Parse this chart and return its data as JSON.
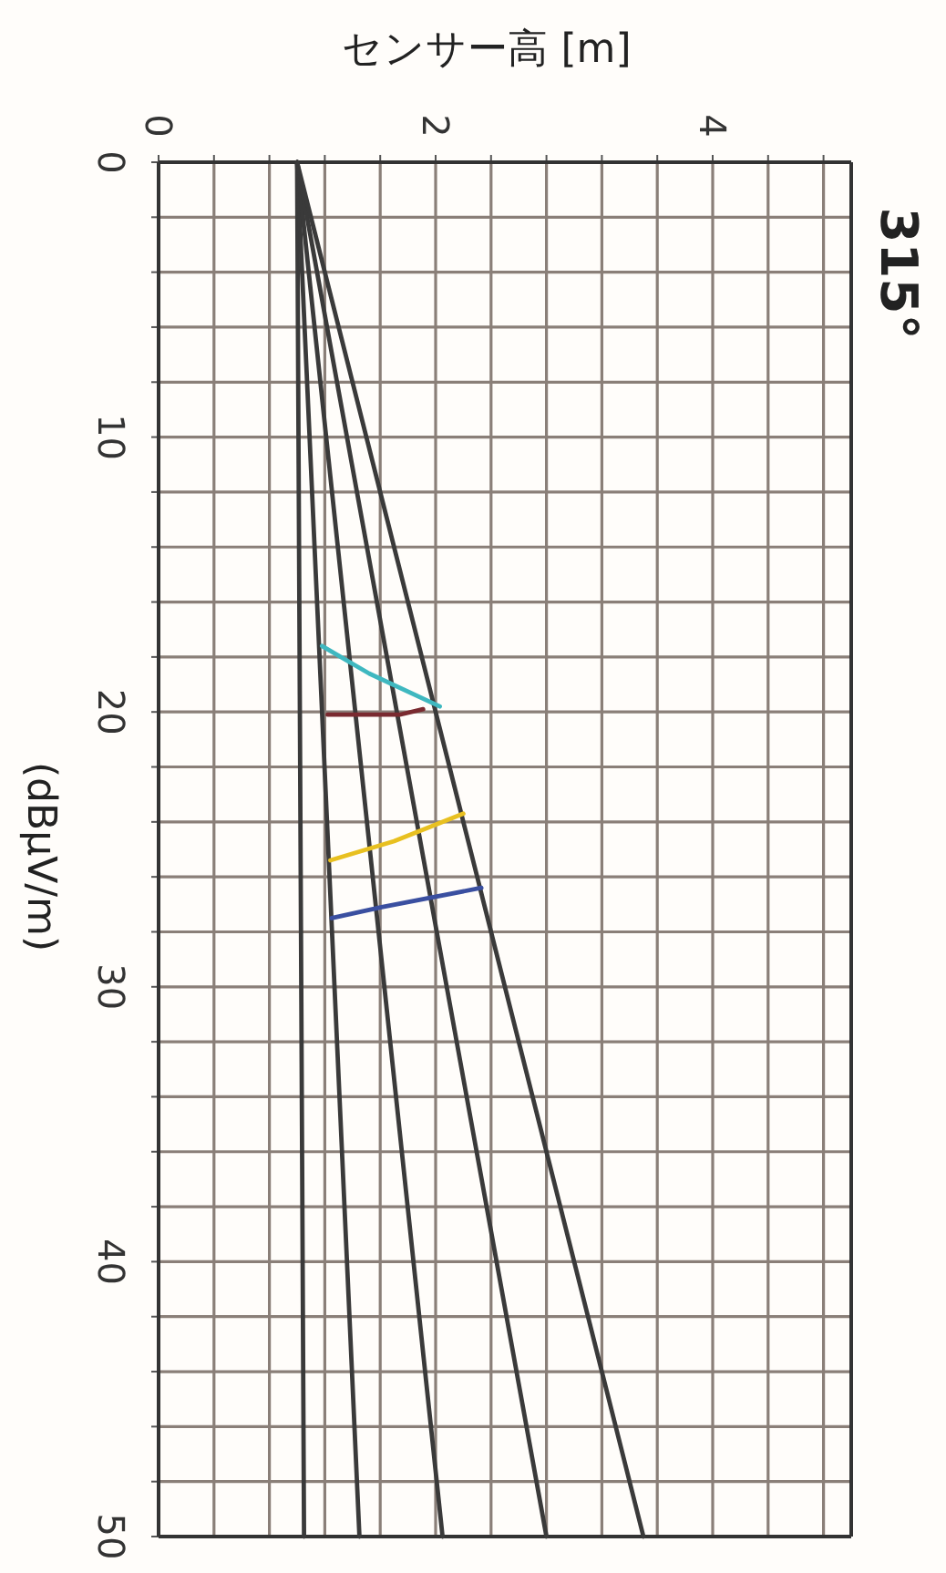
{
  "chart_data": {
    "type": "line",
    "xlabel": "センサー高 [m]",
    "ylabel": "(dBμV/m)",
    "annotations": [
      "315°"
    ],
    "xlim": [
      0,
      5
    ],
    "ylim": [
      50,
      0
    ],
    "xticks": [
      0,
      {
        "value": 0.4,
        "label": null
      },
      {
        "value": 0.8,
        "label": null
      },
      {
        "value": 1.2,
        "label": null
      },
      {
        "value": 1.6,
        "label": null
      },
      2,
      {
        "value": 2.4,
        "label": null
      },
      {
        "value": 2.8,
        "label": null
      },
      {
        "value": 3.2,
        "label": null
      },
      {
        "value": 3.6,
        "label": null
      },
      4,
      {
        "value": 4.4,
        "label": null
      },
      {
        "value": 4.8,
        "label": null
      }
    ],
    "yticks": [
      0,
      {
        "value": 2,
        "label": null
      },
      {
        "value": 4,
        "label": null
      },
      {
        "value": 6,
        "label": null
      },
      {
        "value": 8,
        "label": null
      },
      10,
      {
        "value": 12,
        "label": null
      },
      {
        "value": 14,
        "label": null
      },
      {
        "value": 16,
        "label": null
      },
      {
        "value": 18,
        "label": null
      },
      20,
      {
        "value": 22,
        "label": null
      },
      {
        "value": 24,
        "label": null
      },
      {
        "value": 26,
        "label": null
      },
      {
        "value": 28,
        "label": null
      },
      30,
      {
        "value": 32,
        "label": null
      },
      {
        "value": 34,
        "label": null
      },
      {
        "value": 36,
        "label": null
      },
      {
        "value": 38,
        "label": null
      },
      40,
      {
        "value": 42,
        "label": null
      },
      {
        "value": 44,
        "label": null
      },
      {
        "value": 46,
        "label": null
      },
      {
        "value": 48,
        "label": null
      },
      50
    ],
    "grid": true,
    "marker": "none",
    "line_style": "solid",
    "series": [
      {
        "color": "#3a3a3a",
        "x": [
          1.0,
          1.05
        ],
        "values": [
          0,
          50
        ]
      },
      {
        "color": "#3a3a3a",
        "x": [
          1.0,
          1.45
        ],
        "values": [
          0,
          50
        ]
      },
      {
        "color": "#3a3a3a",
        "x": [
          1.0,
          2.05
        ],
        "values": [
          0,
          50
        ]
      },
      {
        "color": "#3a3a3a",
        "x": [
          1.0,
          2.8
        ],
        "values": [
          0,
          50
        ]
      },
      {
        "color": "#3a3a3a",
        "x": [
          1.0,
          3.5
        ],
        "values": [
          0,
          50
        ]
      },
      {
        "color": "#3fb8c0",
        "x": [
          1.18,
          1.52,
          2.03
        ],
        "values": [
          17.6,
          18.6,
          19.8
        ]
      },
      {
        "color": "#7a2a30",
        "x": [
          1.22,
          1.74,
          1.91
        ],
        "values": [
          20.1,
          20.1,
          19.9
        ]
      },
      {
        "color": "#e8c020",
        "x": [
          1.24,
          1.7,
          2.2
        ],
        "values": [
          25.4,
          24.7,
          23.7
        ]
      },
      {
        "color": "#3a4fa0",
        "x": [
          1.25,
          1.61,
          2.33
        ],
        "values": [
          27.5,
          27.1,
          26.4
        ]
      }
    ]
  }
}
